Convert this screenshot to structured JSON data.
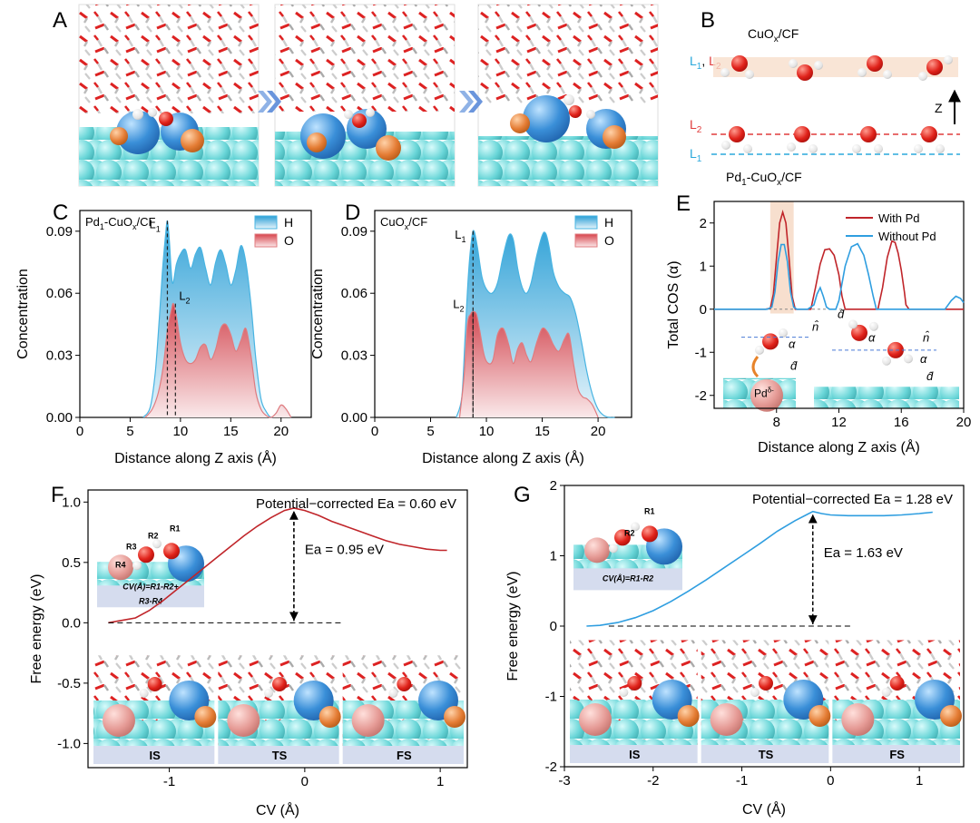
{
  "panel_letters": {
    "A": "A",
    "B": "B",
    "C": "C",
    "D": "D",
    "E": "E",
    "F": "F",
    "G": "G"
  },
  "panelB": {
    "top_label": "CuO",
    "top_label_sub": "x",
    "top_label_tail": "/CF",
    "layer_tag_L1": "L",
    "layer_tag_L1_sub": "1",
    "layer_tag_sep": ", ",
    "layer_tag_L2": "L",
    "layer_tag_L2_sub": "2",
    "axis_label": "Z",
    "bottom_label_pd": "Pd",
    "bottom_label_pd_sub": "1",
    "bottom_label_mid": "-CuO",
    "bottom_label_mid_sub": "x",
    "bottom_label_tail": "/CF",
    "colors": {
      "L1": "#2aa8dc",
      "L2": "#e03c3c"
    }
  },
  "chart_data": [
    {
      "id": "C",
      "type": "area",
      "title": "Pd1-CuOx/CF",
      "title_parts": {
        "a": "Pd",
        "a_sub": "1",
        "b": "-CuO",
        "b_sub": "x",
        "c": "/CF"
      },
      "xlabel": "Distance along Z axis (Å)",
      "ylabel": "Concentration",
      "xlim": [
        0,
        23
      ],
      "ylim": [
        0,
        0.1
      ],
      "xticks": [
        0,
        5,
        10,
        15,
        20
      ],
      "xtick_labels": [
        "0",
        "5",
        "10",
        "15",
        "20"
      ],
      "yticks": [
        0,
        0.03,
        0.06,
        0.09
      ],
      "ytick_labels": [
        "0.00",
        "0.03",
        "0.06",
        "0.09"
      ],
      "legend": [
        "H",
        "O"
      ],
      "annotations": {
        "L1": {
          "x": 8.7,
          "y": 0.095,
          "t": "L",
          "s": "1"
        },
        "L2": {
          "x": 9.5,
          "y": 0.055,
          "t": "L",
          "s": "2"
        }
      },
      "series": [
        {
          "name": "H",
          "x": [
            6.3,
            7.0,
            7.5,
            7.9,
            8.2,
            8.5,
            8.7,
            8.9,
            9.2,
            9.6,
            10.0,
            10.5,
            11.0,
            11.5,
            12.0,
            12.5,
            13.0,
            13.5,
            14.0,
            14.5,
            15.0,
            15.5,
            16.0,
            16.5,
            17.0,
            17.5,
            18.0,
            18.5,
            19.0,
            19.5,
            20.0,
            20.5,
            21.0
          ],
          "values": [
            0.0,
            0.005,
            0.022,
            0.048,
            0.07,
            0.087,
            0.095,
            0.085,
            0.065,
            0.074,
            0.079,
            0.081,
            0.072,
            0.079,
            0.082,
            0.072,
            0.064,
            0.075,
            0.081,
            0.074,
            0.064,
            0.071,
            0.083,
            0.075,
            0.055,
            0.028,
            0.009,
            0.003,
            0.0,
            0.002,
            0.0055,
            0.003,
            0.0
          ]
        },
        {
          "name": "O",
          "x": [
            6.5,
            7.2,
            7.8,
            8.3,
            8.7,
            9.1,
            9.3,
            9.6,
            10.0,
            10.5,
            11.0,
            11.5,
            12.0,
            12.5,
            13.0,
            13.5,
            14.0,
            14.5,
            15.0,
            15.5,
            16.0,
            16.5,
            17.0,
            17.5,
            18.0,
            18.5,
            19.0,
            19.5,
            20.0,
            20.5,
            21.0
          ],
          "values": [
            0.0,
            0.004,
            0.012,
            0.025,
            0.042,
            0.052,
            0.055,
            0.049,
            0.036,
            0.028,
            0.026,
            0.028,
            0.034,
            0.035,
            0.028,
            0.033,
            0.043,
            0.045,
            0.04,
            0.032,
            0.037,
            0.043,
            0.03,
            0.012,
            0.004,
            0.001,
            0.0,
            0.002,
            0.006,
            0.004,
            0.0
          ]
        }
      ]
    },
    {
      "id": "D",
      "type": "area",
      "title": "CuOx/CF",
      "title_parts": {
        "a": "CuO",
        "a_sub": "x",
        "b": "/CF"
      },
      "xlabel": "Distance along Z axis (Å)",
      "ylabel": "Concentration",
      "xlim": [
        0,
        23
      ],
      "ylim": [
        0,
        0.1
      ],
      "xticks": [
        0,
        5,
        10,
        15,
        20
      ],
      "xtick_labels": [
        "0",
        "5",
        "10",
        "15",
        "20"
      ],
      "yticks": [
        0,
        0.03,
        0.06,
        0.09
      ],
      "ytick_labels": [
        "0.00",
        "0.03",
        "0.06",
        "0.09"
      ],
      "legend": [
        "H",
        "O"
      ],
      "annotations": {
        "L1": {
          "x": 8.8,
          "y": 0.09,
          "t": "L",
          "s": "1"
        },
        "L2": {
          "x": 8.8,
          "y": 0.051,
          "t": "L",
          "s": "2"
        }
      },
      "series": [
        {
          "name": "H",
          "x": [
            7.3,
            7.8,
            8.1,
            8.4,
            8.7,
            8.9,
            9.2,
            9.6,
            10.0,
            10.5,
            11.0,
            11.5,
            12.0,
            12.4,
            12.8,
            13.2,
            13.6,
            14.0,
            14.5,
            15.0,
            15.3,
            15.6,
            16.0,
            16.5,
            17.0,
            17.5,
            18.0,
            18.5,
            19.0,
            19.5,
            20.0,
            20.5,
            21.0,
            21.5
          ],
          "values": [
            0.0,
            0.01,
            0.04,
            0.07,
            0.087,
            0.09,
            0.082,
            0.068,
            0.062,
            0.06,
            0.065,
            0.078,
            0.088,
            0.086,
            0.072,
            0.063,
            0.06,
            0.065,
            0.078,
            0.088,
            0.089,
            0.083,
            0.07,
            0.063,
            0.06,
            0.058,
            0.05,
            0.037,
            0.022,
            0.011,
            0.004,
            0.001,
            0.0,
            0.0
          ]
        },
        {
          "name": "O",
          "x": [
            7.6,
            8.0,
            8.3,
            8.6,
            8.8,
            9.1,
            9.4,
            9.8,
            10.2,
            10.6,
            11.0,
            11.5,
            12.0,
            12.4,
            12.8,
            13.2,
            13.6,
            14.0,
            14.5,
            15.0,
            15.5,
            16.0,
            16.5,
            17.0,
            17.4,
            17.8,
            18.2,
            18.6,
            19.0,
            19.5,
            20.0
          ],
          "values": [
            0.0,
            0.02,
            0.045,
            0.05,
            0.051,
            0.05,
            0.042,
            0.03,
            0.026,
            0.028,
            0.04,
            0.043,
            0.035,
            0.026,
            0.033,
            0.036,
            0.03,
            0.027,
            0.036,
            0.043,
            0.041,
            0.035,
            0.032,
            0.038,
            0.04,
            0.026,
            0.014,
            0.01,
            0.009,
            0.006,
            0.0
          ]
        }
      ]
    },
    {
      "id": "E",
      "type": "line",
      "xlabel": "Distance along Z axis (Å)",
      "ylabel": "Total COS (α)",
      "xlim": [
        4,
        20
      ],
      "ylim": [
        -2.3,
        2.5
      ],
      "xticks": [
        8,
        12,
        16,
        20
      ],
      "xtick_labels": [
        "8",
        "12",
        "16",
        "20"
      ],
      "yticks": [
        -2,
        -1,
        0,
        1,
        2
      ],
      "ytick_labels": [
        "-2",
        "-1",
        "0",
        "1",
        "2"
      ],
      "legend": [
        "With Pd",
        "Without Pd"
      ],
      "highlight_x": [
        7.6,
        9.1
      ],
      "inset_label_pd": "Pd",
      "inset_label_pd_sup": "δ-",
      "inset_symbols": {
        "n": "n̂",
        "a": "α",
        "d": "d̂"
      },
      "series": [
        {
          "name": "With Pd",
          "color": "#c0252a",
          "x": [
            4,
            7.3,
            7.6,
            7.8,
            8.0,
            8.2,
            8.4,
            8.6,
            8.8,
            9.0,
            9.2,
            9.5,
            10.0,
            10.2,
            10.5,
            10.8,
            11.1,
            11.4,
            11.7,
            12.0,
            12.2,
            12.4,
            13.0,
            14.0,
            14.5,
            14.8,
            15.1,
            15.4,
            15.6,
            15.8,
            16.0,
            16.2,
            16.3,
            16.5,
            20
          ],
          "values": [
            0,
            0,
            0.02,
            0.35,
            1.2,
            2.0,
            2.25,
            2.0,
            1.2,
            0.3,
            0,
            0,
            0,
            0,
            0.5,
            1.05,
            1.38,
            1.4,
            1.25,
            0.8,
            0.3,
            0,
            0,
            0,
            0,
            0.5,
            1.2,
            1.58,
            1.55,
            1.3,
            0.9,
            0.4,
            0.1,
            0,
            0
          ]
        },
        {
          "name": "Without Pd",
          "color": "#2f9ee0",
          "x": [
            4,
            7.4,
            7.7,
            7.9,
            8.1,
            8.3,
            8.5,
            8.7,
            8.9,
            9.1,
            9.3,
            10.0,
            10.4,
            10.6,
            10.8,
            11.0,
            11.2,
            11.4,
            11.8,
            12.0,
            12.4,
            12.8,
            13.2,
            13.6,
            13.9,
            14.2,
            14.4,
            15.0,
            18.8,
            19.2,
            19.5,
            19.8,
            20
          ],
          "values": [
            0,
            0,
            0.05,
            0.4,
            1.1,
            1.5,
            1.5,
            1.1,
            0.4,
            0.05,
            0,
            0,
            0.1,
            0.35,
            0.5,
            0.3,
            0.05,
            0,
            0,
            0.2,
            1.0,
            1.45,
            1.52,
            1.25,
            0.8,
            0.3,
            0,
            0,
            0,
            0.2,
            0.3,
            0.25,
            0.15
          ]
        }
      ]
    },
    {
      "id": "F",
      "type": "line",
      "xlabel": "CV (Å)",
      "ylabel": "Free energy (eV)",
      "xlim": [
        -1.6,
        1.2
      ],
      "ylim": [
        -1.2,
        1.1
      ],
      "xticks": [
        -1,
        0,
        1
      ],
      "xtick_labels": [
        "-1",
        "0",
        "1"
      ],
      "yticks": [
        -1.0,
        -0.5,
        0.0,
        0.5,
        1.0
      ],
      "ytick_labels": [
        "-1.0",
        "-0.5",
        "0.0",
        "0.5",
        "1.0"
      ],
      "annotation_top": "Potential−corrected Ea = 0.60 eV",
      "annotation_ea": "Ea = 0.95 eV",
      "peak": {
        "x": -0.08,
        "y": 0.95
      },
      "baseline": {
        "x0": -1.45,
        "x1": 0.28,
        "y": 0.0
      },
      "inset_labels": [
        "R1",
        "R2",
        "R3",
        "R4"
      ],
      "inset_formula_1": "CV(Å)=R1-R2+",
      "inset_formula_2": "R3-R4",
      "state_labels": [
        "IS",
        "TS",
        "FS"
      ],
      "series": [
        {
          "name": "Free energy",
          "color": "#c0252a",
          "x": [
            -1.45,
            -1.35,
            -1.25,
            -1.15,
            -1.05,
            -0.95,
            -0.85,
            -0.75,
            -0.65,
            -0.55,
            -0.45,
            -0.35,
            -0.25,
            -0.15,
            -0.08,
            0.0,
            0.1,
            0.2,
            0.3,
            0.4,
            0.5,
            0.6,
            0.7,
            0.8,
            0.9,
            1.0,
            1.05
          ],
          "values": [
            0.0,
            0.02,
            0.04,
            0.1,
            0.18,
            0.27,
            0.36,
            0.45,
            0.54,
            0.63,
            0.72,
            0.8,
            0.87,
            0.93,
            0.95,
            0.93,
            0.89,
            0.84,
            0.8,
            0.76,
            0.72,
            0.68,
            0.65,
            0.63,
            0.61,
            0.6,
            0.6
          ]
        }
      ]
    },
    {
      "id": "G",
      "type": "line",
      "xlabel": "CV (Å)",
      "ylabel": "Free energy (eV)",
      "xlim": [
        -3,
        1.5
      ],
      "ylim": [
        -2,
        2
      ],
      "xticks": [
        -3,
        -2,
        -1,
        0,
        1
      ],
      "xtick_labels": [
        "-3",
        "-2",
        "-1",
        "0",
        "1"
      ],
      "yticks": [
        -2,
        -1,
        0,
        1,
        2
      ],
      "ytick_labels": [
        "-2",
        "-1",
        "0",
        "1",
        "2"
      ],
      "annotation_top": "Potential−corrected Ea = 1.28 eV",
      "annotation_ea": "Ea = 1.63 eV",
      "peak": {
        "x": -0.2,
        "y": 1.63
      },
      "baseline": {
        "x0": -2.5,
        "x1": 0.25,
        "y": 0.0
      },
      "inset_labels": [
        "R1",
        "R2"
      ],
      "inset_formula_1": "CV(Å)=R1-R2",
      "state_labels": [
        "IS",
        "TS",
        "FS"
      ],
      "series": [
        {
          "name": "Free energy",
          "color": "#2f9ee0",
          "x": [
            -2.75,
            -2.6,
            -2.4,
            -2.2,
            -2.0,
            -1.8,
            -1.6,
            -1.4,
            -1.2,
            -1.0,
            -0.8,
            -0.6,
            -0.4,
            -0.2,
            -0.1,
            0.0,
            0.2,
            0.4,
            0.6,
            0.8,
            1.0,
            1.15
          ],
          "values": [
            0.0,
            0.01,
            0.05,
            0.12,
            0.22,
            0.35,
            0.5,
            0.66,
            0.83,
            1.0,
            1.17,
            1.35,
            1.5,
            1.63,
            1.6,
            1.58,
            1.57,
            1.57,
            1.57,
            1.58,
            1.6,
            1.62
          ]
        }
      ]
    }
  ]
}
